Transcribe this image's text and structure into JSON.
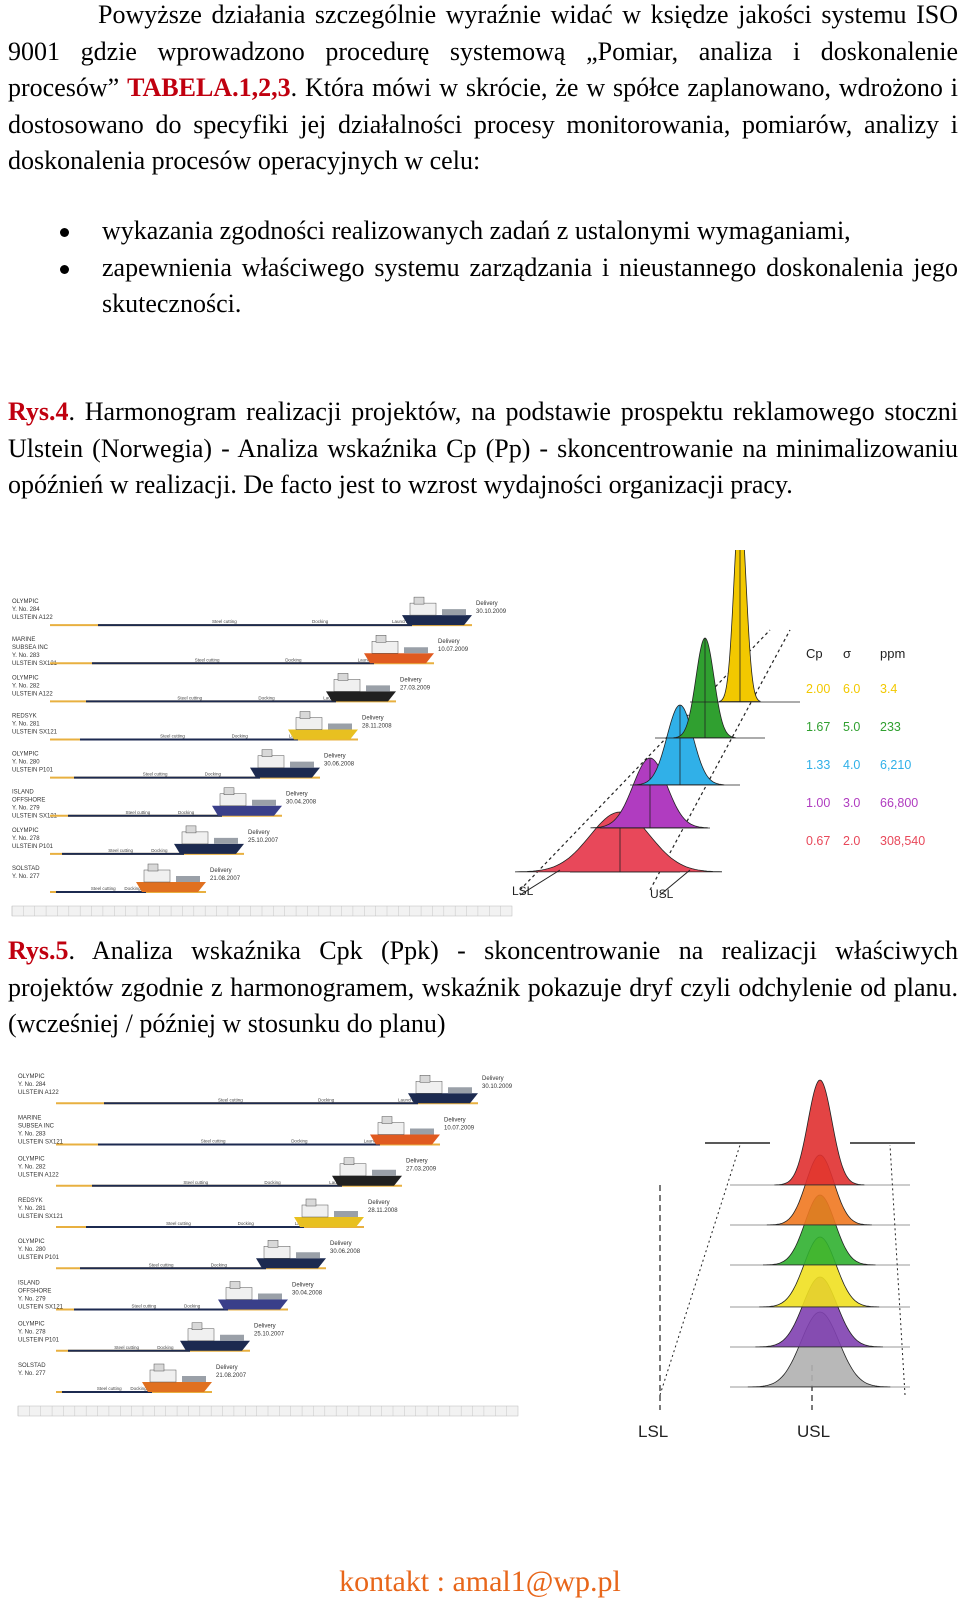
{
  "intro": {
    "text_before": "Powyższe działania szczególnie wyraźnie widać w księdze jakości systemu ISO 9001 gdzie wprowadzono procedurę systemową „Pomiar, analiza i doskonalenie procesów” ",
    "table_ref": "TABELA.1,2,3",
    "text_after": ". Która mówi w skrócie, że w spółce zaplanowano, wdrożono i dostosowano do specyfiki jej działalności procesy monitorowania, pomiarów, analizy i doskonalenia procesów operacyjnych w celu:"
  },
  "bullets": [
    "wykazania zgodności realizowanych zadań z ustalonymi wymaganiami,",
    "zapewnienia właściwego systemu zarządzania i nieustannego doskonalenia jego skuteczności."
  ],
  "fig4": {
    "label": "Rys.4",
    "caption": ". Harmonogram realizacji projektów, na podstawie prospektu reklamowego stoczni Ulstein (Norwegia) - Analiza wskaźnika Cp (Pp) - skoncentrowanie na minimalizowaniu opóźnień w realizacji. De facto jest to wzrost wydajności organizacji pracy.",
    "table": {
      "headers": [
        "Cp",
        "σ",
        "ppm"
      ],
      "rows": [
        [
          "2.00",
          "6.0",
          "3.4"
        ],
        [
          "1.67",
          "5.0",
          "233"
        ],
        [
          "1.33",
          "4.0",
          "6,210"
        ],
        [
          "1.00",
          "3.0",
          "66,800"
        ],
        [
          "0.67",
          "2.0",
          "308,540"
        ]
      ],
      "colors": [
        "#f2c800",
        "#30a030",
        "#30b0e8",
        "#b03cc0",
        "#e8485a"
      ]
    },
    "lsl": "LSL",
    "usl": "USL"
  },
  "fig5": {
    "label": "Rys.5",
    "caption": ". Analiza wskaźnika Cpk (Ppk) - skoncentrowanie na realizacji właściwych projektów zgodnie z harmonogramem, wskaźnik pokazuje dryf czyli odchylenie od planu. (wcześniej / później w stosunku do planu)",
    "lsl": "LSL",
    "usl": "USL",
    "colors": [
      "#e03030",
      "#f07820",
      "#30b030",
      "#f0e020",
      "#8040b0",
      "#b0b0b0"
    ]
  },
  "gantt": {
    "projects": [
      {
        "name": "OLYMPIC",
        "line2": "Y. No. 284",
        "line3": "ULSTEIN A122",
        "delivery": "Delivery",
        "date": "30.10.2009"
      },
      {
        "name": "MARINE",
        "line2": "SUBSEA INC",
        "line3": "Y. No. 283",
        "line4": "ULSTEIN SX121",
        "delivery": "Delivery",
        "date": "10.07.2009"
      },
      {
        "name": "OLYMPIC",
        "line2": "Y. No. 282",
        "line3": "ULSTEIN A122",
        "delivery": "Delivery",
        "date": "27.03.2009"
      },
      {
        "name": "REDSYK",
        "line2": "Y. No. 281",
        "line3": "ULSTEIN SX121",
        "delivery": "Delivery",
        "date": "28.11.2008"
      },
      {
        "name": "OLYMPIC",
        "line2": "Y. No. 280",
        "line3": "ULSTEIN P101",
        "delivery": "Delivery",
        "date": "30.06.2008"
      },
      {
        "name": "ISLAND",
        "line2": "OFFSHORE",
        "line3": "Y. No. 279",
        "line4": "ULSTEIN SX121",
        "delivery": "Delivery",
        "date": "30.04.2008"
      },
      {
        "name": "OLYMPIC",
        "line2": "Y. No. 278",
        "line3": "ULSTEIN P101",
        "delivery": "Delivery",
        "date": "25.10.2007"
      },
      {
        "name": "SOLSTAD",
        "line2": "Y. No. 277",
        "line3": "",
        "delivery": "Delivery",
        "date": "21.08.2007"
      }
    ],
    "milestones": [
      "Steel cutting",
      "Docking",
      "Launching"
    ]
  },
  "contact": "kontakt : amal1@wp.pl"
}
